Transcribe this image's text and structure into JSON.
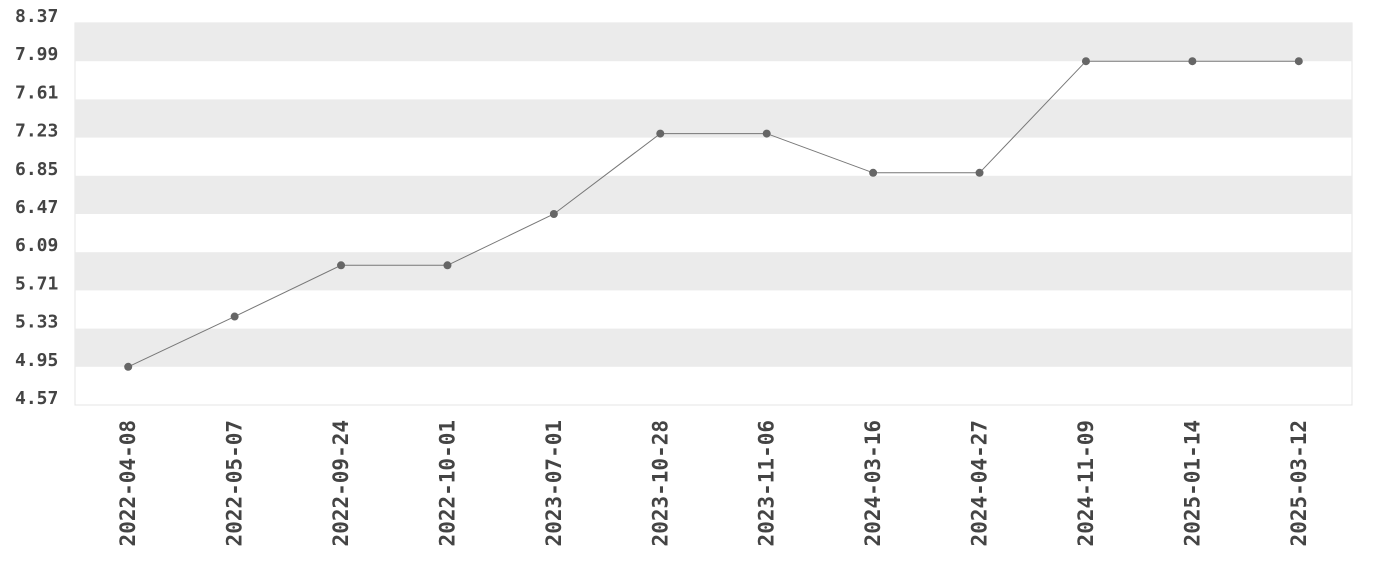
{
  "chart_data": {
    "type": "line",
    "categories": [
      "2022-04-08",
      "2022-05-07",
      "2022-09-24",
      "2022-10-01",
      "2023-07-01",
      "2023-10-28",
      "2023-11-06",
      "2024-03-16",
      "2024-04-27",
      "2024-11-09",
      "2025-01-14",
      "2025-03-12"
    ],
    "values": [
      4.95,
      5.45,
      5.96,
      5.96,
      6.47,
      7.27,
      7.27,
      6.88,
      6.88,
      7.99,
      7.99,
      7.99
    ],
    "color": "#777777",
    "ylim": [
      4.57,
      8.37
    ],
    "yticks": [
      4.57,
      4.95,
      5.33,
      5.71,
      6.09,
      6.47,
      6.85,
      7.23,
      7.61,
      7.99,
      8.37
    ],
    "grid": true
  }
}
